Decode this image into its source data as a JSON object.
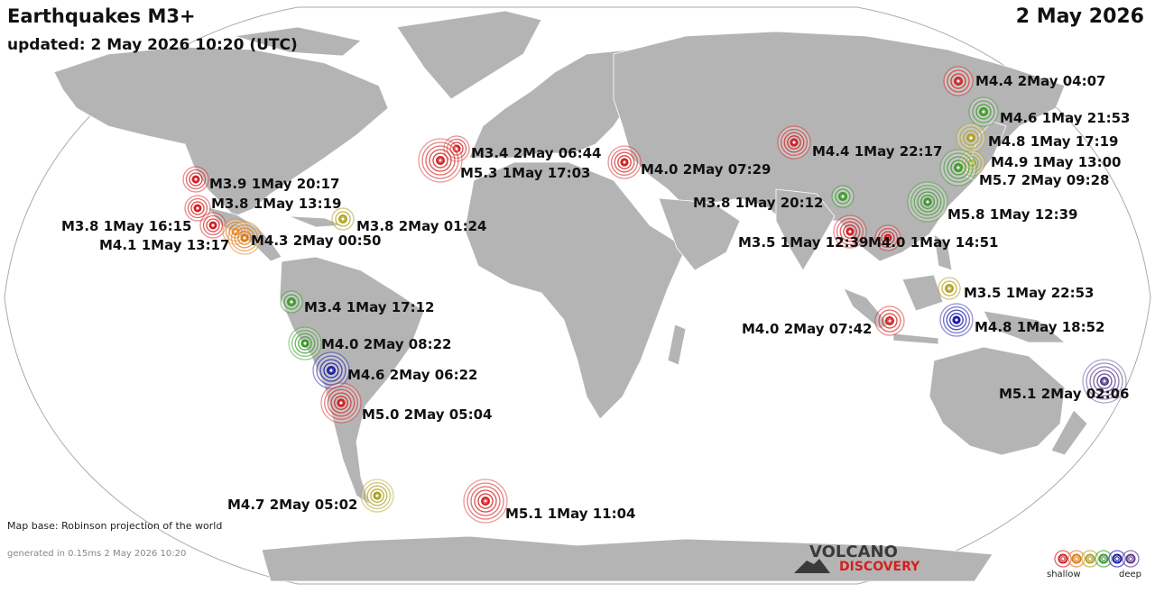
{
  "header": {
    "title": "Earthquakes M3+",
    "updated": "updated:  2 May 2026 10:20 (UTC)",
    "date": "2 May 2026"
  },
  "footer": {
    "map_base": "Map base: Robinson projection of the world",
    "generated": "generated in 0.15ms  2 May 2026 10:20"
  },
  "logo": {
    "line1": "VOLCANO",
    "line2": "DISCOVERY"
  },
  "legend": {
    "shallow_label": "shallow",
    "deep_label": "deep",
    "depth_colors": [
      "#d42020",
      "#e07a10",
      "#b0a020",
      "#3a9a2a",
      "#1a1aa8",
      "#5a3a8a"
    ]
  },
  "colors": {
    "land": "#b4b4b4",
    "water": "#ffffff",
    "border": "#ffffff",
    "outline": "#aaaaaa"
  },
  "quakes": [
    {
      "label": "M4.4  2May 04:07",
      "depth": 0
    },
    {
      "label": "M4.6  1May 21:53",
      "depth": 3
    },
    {
      "label": "M4.8  1May 17:19",
      "depth": 2
    },
    {
      "label": "M4.9  1May 13:00",
      "depth": 2
    },
    {
      "label": "M5.7  2May 09:28",
      "depth": 3
    },
    {
      "label": "M4.4  1May 22:17",
      "depth": 0
    },
    {
      "label": "M3.8  1May 20:12",
      "depth": 3
    },
    {
      "label": "M5.8  1May 12:39",
      "depth": 3
    },
    {
      "label": "M3.5  1May 12:39",
      "depth": 0
    },
    {
      "label": "M4.0  1May 14:51",
      "depth": 0
    },
    {
      "label": "M3.5  1May 22:53",
      "depth": 2
    },
    {
      "label": "M4.0  2May 07:42",
      "depth": 0
    },
    {
      "label": "M4.8  1May 18:52",
      "depth": 4
    },
    {
      "label": "M5.1  2May 02:06",
      "depth": 5
    },
    {
      "label": "M3.4  2May 06:44",
      "depth": 0
    },
    {
      "label": "M5.3  1May 17:03",
      "depth": 0
    },
    {
      "label": "M4.0  2May 07:29",
      "depth": 0
    },
    {
      "label": "M3.9  1May 20:17",
      "depth": 0
    },
    {
      "label": "M3.8  1May 13:19",
      "depth": 0
    },
    {
      "label": "M3.8  1May 16:15",
      "depth": 0
    },
    {
      "label": "M4.1  1May 13:17",
      "depth": 1
    },
    {
      "label": "M4.3  2May 00:50",
      "depth": 1
    },
    {
      "label": "M3.8  2May 01:24",
      "depth": 2
    },
    {
      "label": "M3.4  1May 17:12",
      "depth": 3
    },
    {
      "label": "M4.0  2May 08:22",
      "depth": 3
    },
    {
      "label": "M4.6  2May 06:22",
      "depth": 4
    },
    {
      "label": "M5.0  2May 05:04",
      "depth": 0
    },
    {
      "label": "M4.7  2May 05:02",
      "depth": 2
    },
    {
      "label": "M5.1  1May 11:04",
      "depth": 0
    }
  ]
}
